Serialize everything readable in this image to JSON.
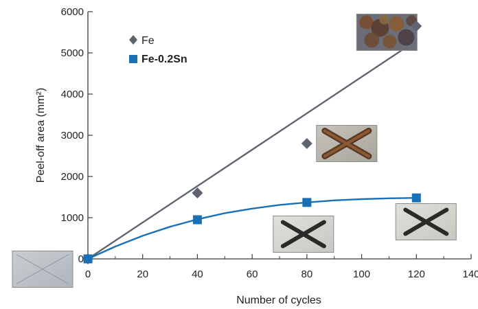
{
  "chart_data": {
    "type": "scatter",
    "x_label": "Number of cycles",
    "y_label": "Peel-off area (mm²)",
    "xlim": [
      0,
      140
    ],
    "ylim": [
      0,
      6000
    ],
    "x_ticks": [
      0,
      20,
      40,
      60,
      80,
      100,
      120,
      140
    ],
    "x_tick_labels": [
      "0",
      "20",
      "40",
      "60",
      "80",
      "100",
      "120",
      "140"
    ],
    "y_ticks": [
      0,
      1000,
      2000,
      3000,
      4000,
      5000,
      6000
    ],
    "y_tick_labels": [
      "0",
      "1000",
      "2000",
      "3000",
      "4000",
      "5000",
      "6000"
    ],
    "grid": false,
    "legend_position": "top-left",
    "series": [
      {
        "name": "Fe",
        "marker": "diamond",
        "color": "#5f6570",
        "label_bold": false,
        "x": [
          0,
          40,
          80,
          120
        ],
        "y": [
          0,
          1600,
          2800,
          5650
        ],
        "fit": "linear",
        "fit_x": [
          0,
          120
        ],
        "fit_y": [
          0,
          5300
        ]
      },
      {
        "name": "Fe-0.2Sn",
        "marker": "square",
        "color": "#1a6fb5",
        "label_bold": true,
        "x": [
          0,
          40,
          80,
          120
        ],
        "y": [
          0,
          950,
          1370,
          1480
        ],
        "fit": "curve",
        "fit_x": [
          0,
          10,
          20,
          30,
          40,
          50,
          60,
          70,
          80,
          90,
          100,
          110,
          120
        ],
        "fit_y": [
          0,
          300,
          560,
          780,
          960,
          1110,
          1220,
          1310,
          1370,
          1420,
          1450,
          1470,
          1480
        ]
      }
    ],
    "sample_photos": [
      {
        "name": "photo-0-cycles",
        "x": 0,
        "y": 0,
        "tone": "clean"
      },
      {
        "name": "photo-40-cycles",
        "x": 80,
        "y": 600,
        "tone": "light-cross"
      },
      {
        "name": "photo-80-cycles",
        "x": 80,
        "y": 2800,
        "tone": "rust-cross"
      },
      {
        "name": "photo-120-cycles-sn",
        "x": 120,
        "y": 900,
        "tone": "light-cross"
      },
      {
        "name": "photo-120-cycles-fe",
        "x": 120,
        "y": 5500,
        "tone": "heavy-rust"
      }
    ]
  }
}
